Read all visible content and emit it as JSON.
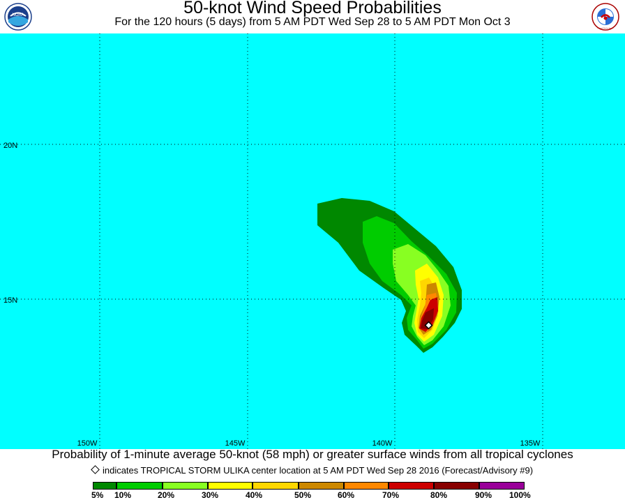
{
  "header": {
    "title": "50-knot Wind Speed Probabilities",
    "subtitle": "For the 120 hours (5 days) from 5 AM PDT Wed Sep 28 to 5 AM PDT Mon Oct 3",
    "logo_left": "NOAA",
    "logo_right": "National Weather Service"
  },
  "map": {
    "background_color": "#00ffff",
    "lat_labels": [
      "20N",
      "15N"
    ],
    "lon_labels": [
      "150W",
      "145W",
      "140W",
      "135W"
    ],
    "storm_center": {
      "lon": -138.5,
      "lat": 14.2
    }
  },
  "caption": "Probability of 1-minute average 50-knot (58 mph) or greater surface winds from all tropical cyclones",
  "legend_note": "indicates TROPICAL STORM ULIKA center location at 5 AM PDT Wed Sep 28 2016 (Forecast/Advisory #9)",
  "scale": {
    "labels": [
      "5%",
      "10%",
      "20%",
      "30%",
      "40%",
      "50%",
      "60%",
      "70%",
      "80%",
      "90%",
      "100%"
    ],
    "colors": [
      "#008800",
      "#00cc00",
      "#88ff22",
      "#ffff00",
      "#ffd700",
      "#cc8800",
      "#ff8800",
      "#cc0000",
      "#880000",
      "#990099"
    ]
  }
}
